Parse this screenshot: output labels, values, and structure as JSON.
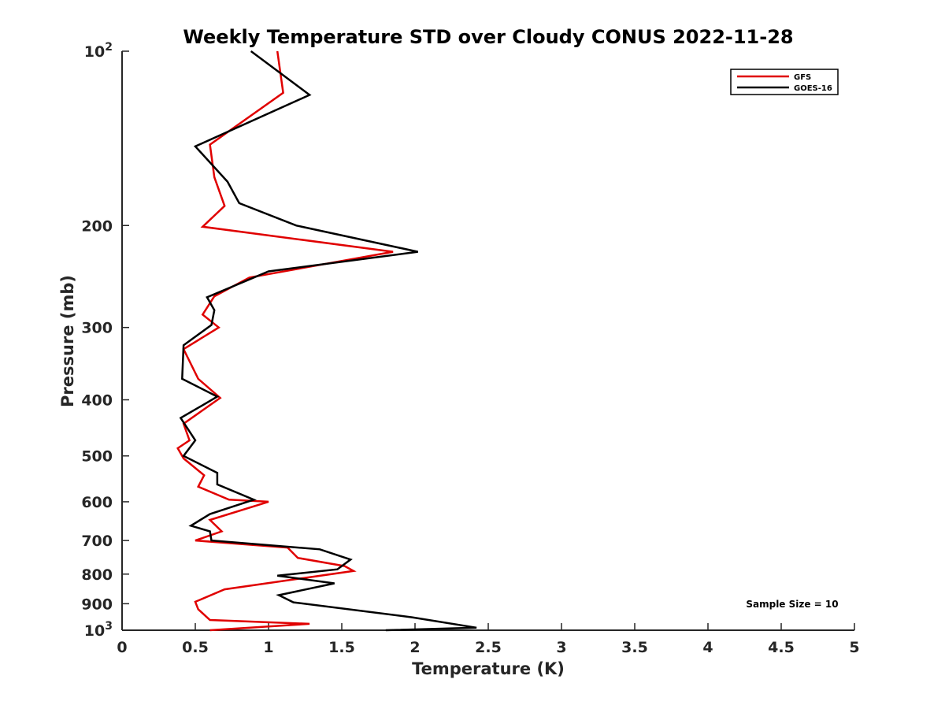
{
  "chart_data": {
    "type": "line",
    "title": "Weekly Temperature STD over Cloudy CONUS 2022-11-28",
    "xlabel": "Temperature (K)",
    "ylabel": "Pressure (mb)",
    "xlim": [
      0,
      5
    ],
    "ylim": [
      100,
      1000
    ],
    "y_scale": "log",
    "y_reversed": true,
    "grid": false,
    "legend_position": "top-right",
    "x_ticks": [
      0,
      0.5,
      1,
      1.5,
      2,
      2.5,
      3,
      3.5,
      4,
      4.5,
      5
    ],
    "x_tick_labels": [
      "0",
      "0.5",
      "1",
      "1.5",
      "2",
      "2.5",
      "3",
      "3.5",
      "4",
      "4.5",
      "5"
    ],
    "y_ticks": [
      100,
      200,
      300,
      400,
      500,
      600,
      700,
      800,
      900,
      1000
    ],
    "y_tick_labels": [
      {
        "base": "10",
        "exp": "2"
      },
      {
        "base": "200",
        "exp": ""
      },
      {
        "base": "300",
        "exp": ""
      },
      {
        "base": "400",
        "exp": ""
      },
      {
        "base": "500",
        "exp": ""
      },
      {
        "base": "600",
        "exp": ""
      },
      {
        "base": "700",
        "exp": ""
      },
      {
        "base": "800",
        "exp": ""
      },
      {
        "base": "900",
        "exp": ""
      },
      {
        "base": "10",
        "exp": "3"
      }
    ],
    "annotation": "Sample Size = 10",
    "series": [
      {
        "name": "GFS",
        "color": "#e00000",
        "points": [
          [
            1.06,
            100
          ],
          [
            1.1,
            118
          ],
          [
            0.6,
            145
          ],
          [
            0.63,
            165
          ],
          [
            0.7,
            185
          ],
          [
            0.55,
            201
          ],
          [
            1.85,
            222
          ],
          [
            0.87,
            246
          ],
          [
            0.63,
            265
          ],
          [
            0.55,
            285
          ],
          [
            0.66,
            300
          ],
          [
            0.42,
            327
          ],
          [
            0.52,
            368
          ],
          [
            0.67,
            397
          ],
          [
            0.42,
            440
          ],
          [
            0.46,
            470
          ],
          [
            0.38,
            485
          ],
          [
            0.42,
            505
          ],
          [
            0.56,
            540
          ],
          [
            0.52,
            565
          ],
          [
            0.73,
            595
          ],
          [
            1.0,
            600
          ],
          [
            0.6,
            645
          ],
          [
            0.68,
            675
          ],
          [
            0.5,
            700
          ],
          [
            1.13,
            720
          ],
          [
            1.2,
            750
          ],
          [
            1.52,
            775
          ],
          [
            1.58,
            790
          ],
          [
            1.28,
            810
          ],
          [
            0.7,
            850
          ],
          [
            0.5,
            893
          ],
          [
            0.52,
            920
          ],
          [
            0.6,
            960
          ],
          [
            1.28,
            975
          ],
          [
            0.6,
            1000
          ]
        ]
      },
      {
        "name": "GOES-16",
        "color": "#000000",
        "points": [
          [
            0.88,
            100
          ],
          [
            1.28,
            119
          ],
          [
            0.5,
            146
          ],
          [
            0.72,
            168
          ],
          [
            0.8,
            183
          ],
          [
            1.19,
            200
          ],
          [
            2.02,
            222
          ],
          [
            1.0,
            240
          ],
          [
            0.58,
            266
          ],
          [
            0.63,
            280
          ],
          [
            0.61,
            297
          ],
          [
            0.42,
            322
          ],
          [
            0.41,
            368
          ],
          [
            0.65,
            395
          ],
          [
            0.4,
            430
          ],
          [
            0.5,
            470
          ],
          [
            0.42,
            500
          ],
          [
            0.65,
            535
          ],
          [
            0.65,
            560
          ],
          [
            0.9,
            595
          ],
          [
            0.6,
            630
          ],
          [
            0.47,
            660
          ],
          [
            0.6,
            675
          ],
          [
            0.61,
            700
          ],
          [
            1.35,
            725
          ],
          [
            1.56,
            755
          ],
          [
            1.47,
            785
          ],
          [
            1.06,
            805
          ],
          [
            1.45,
            830
          ],
          [
            1.07,
            870
          ],
          [
            1.17,
            895
          ],
          [
            1.98,
            950
          ],
          [
            2.42,
            990
          ],
          [
            1.8,
            1000
          ]
        ]
      }
    ]
  }
}
